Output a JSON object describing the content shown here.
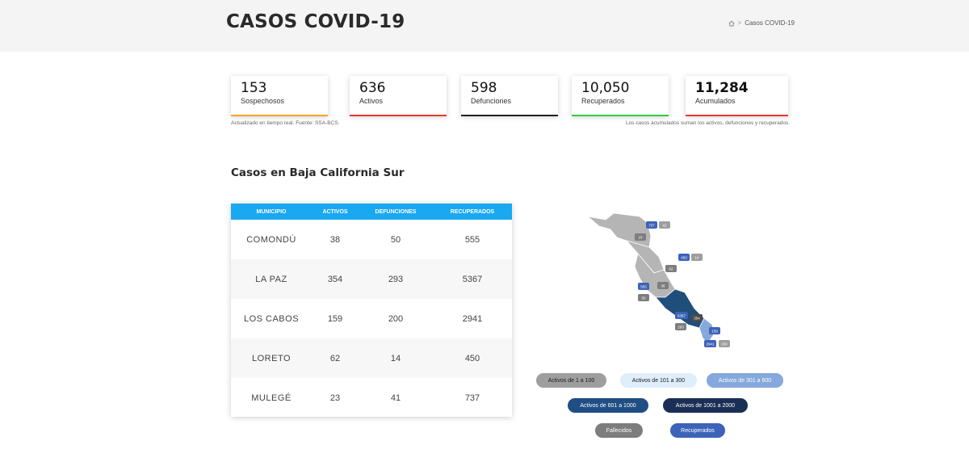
{
  "header": {
    "title": "CASOS COVID-19",
    "breadcrumb": {
      "current": "Casos COVID-19",
      "separator": ">"
    }
  },
  "stats": [
    {
      "value": "153",
      "label": "Sospechosos",
      "color": "#f5a623"
    },
    {
      "value": "636",
      "label": "Activos",
      "color": "#e53935"
    },
    {
      "value": "598",
      "label": "Defunciones",
      "color": "#222222"
    },
    {
      "value": "10,050",
      "label": "Recuperados",
      "color": "#2ecc40"
    },
    {
      "value": "11,284",
      "label": "Acumulados",
      "color": "#e53935"
    }
  ],
  "notes": {
    "left": "Actualizado en tiempo real. Fuente: SSA-BCS.",
    "right": "Los casos acumulados suman los activos, defunciones y recuperados."
  },
  "section_title": "Casos en Baja California Sur",
  "table": {
    "headers": [
      "MUNICIPIO",
      "ACTIVOS",
      "DEFUNCIONES",
      "RECUPERADOS"
    ],
    "rows": [
      [
        "COMONDÚ",
        "38",
        "50",
        "555"
      ],
      [
        "LA PAZ",
        "354",
        "293",
        "5367"
      ],
      [
        "LOS CABOS",
        "159",
        "200",
        "2941"
      ],
      [
        "LORETO",
        "62",
        "14",
        "450"
      ],
      [
        "MULEGÉ",
        "23",
        "41",
        "737"
      ]
    ]
  },
  "map_labels": {
    "mulege_recuperados": "737",
    "mulege_defunciones": "41",
    "mulege_activos": "23",
    "loreto_recuperados": "450",
    "loreto_defunciones": "14",
    "loreto_activos": "62",
    "comondu_recuperados": "555",
    "comondu_defunciones": "50",
    "comondu_activos": "38",
    "lapaz_recuperados": "5367",
    "lapaz_defunciones": "293",
    "lapaz_activos": "354",
    "loscabos_activos": "159",
    "loscabos_recuperados": "2941",
    "loscabos_defunciones": "200"
  },
  "legend": [
    {
      "label": "Activos de 1 a 100",
      "bg": "#9e9e9e",
      "fg": "#1a1a1a"
    },
    {
      "label": "Activos de 101 a 300",
      "bg": "#dfeefb",
      "fg": "#1a1a1a"
    },
    {
      "label": "Activos de 301 a 600",
      "bg": "#86a8dc",
      "fg": "#ffffff"
    },
    {
      "label": "Activos de 601 a 1000",
      "bg": "#1f4e85",
      "fg": "#ffffff"
    },
    {
      "label": "Activos de 1001 a 2000",
      "bg": "#1a2f55",
      "fg": "#ffffff"
    },
    {
      "label": "Fallecidos",
      "bg": "#7d7d7d",
      "fg": "#ffffff"
    },
    {
      "label": "Recuperados",
      "bg": "#3d63b8",
      "fg": "#ffffff"
    }
  ],
  "colors": {
    "header_bg": "#f4f4f4",
    "table_header": "#1aa8f0",
    "map_gray": "#b5b5b5",
    "map_dark_blue": "#1f4e7a",
    "map_light_blue": "#86a8dc"
  }
}
